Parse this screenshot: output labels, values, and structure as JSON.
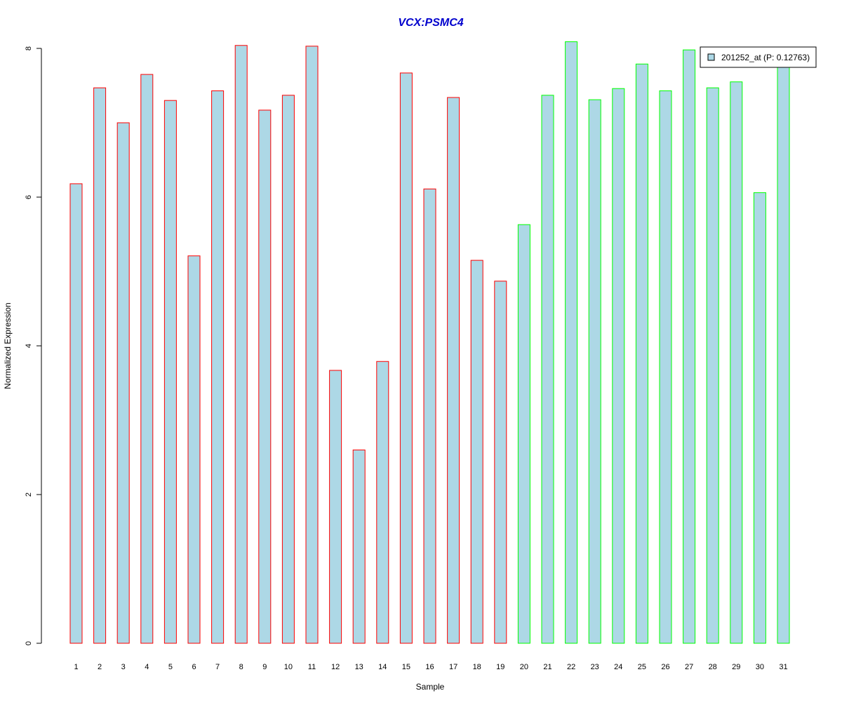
{
  "chart_data": {
    "type": "bar",
    "title": "VCX:PSMC4",
    "xlabel": "Sample",
    "ylabel": "Normalized Expression",
    "ylim": [
      0,
      8
    ],
    "yticks": [
      0,
      2,
      4,
      6,
      8
    ],
    "grid": false,
    "legend": {
      "position": "top-right",
      "label": "201252_at (P: 0.12763)"
    },
    "categories": [
      "1",
      "2",
      "3",
      "4",
      "5",
      "6",
      "7",
      "8",
      "9",
      "10",
      "11",
      "12",
      "13",
      "14",
      "15",
      "16",
      "17",
      "18",
      "19",
      "20",
      "21",
      "22",
      "23",
      "24",
      "25",
      "26",
      "27",
      "28",
      "29",
      "30",
      "31"
    ],
    "values": [
      6.18,
      7.47,
      7.0,
      7.65,
      7.3,
      5.21,
      7.43,
      8.04,
      7.17,
      7.37,
      8.03,
      3.67,
      2.6,
      3.79,
      7.67,
      6.11,
      7.34,
      5.15,
      4.87,
      5.63,
      7.37,
      8.09,
      7.31,
      7.46,
      7.79,
      7.43,
      7.98,
      7.47,
      7.55,
      6.06,
      7.76
    ],
    "groups": [
      "red",
      "red",
      "red",
      "red",
      "red",
      "red",
      "red",
      "red",
      "red",
      "red",
      "red",
      "red",
      "red",
      "red",
      "red",
      "red",
      "red",
      "red",
      "red",
      "green",
      "green",
      "green",
      "green",
      "green",
      "green",
      "green",
      "green",
      "green",
      "green",
      "green",
      "green"
    ],
    "colors": {
      "fill": "#ADD8E6",
      "red": "#FF0000",
      "green": "#00FF00",
      "title": "#0000CD",
      "axis": "#000000"
    }
  }
}
